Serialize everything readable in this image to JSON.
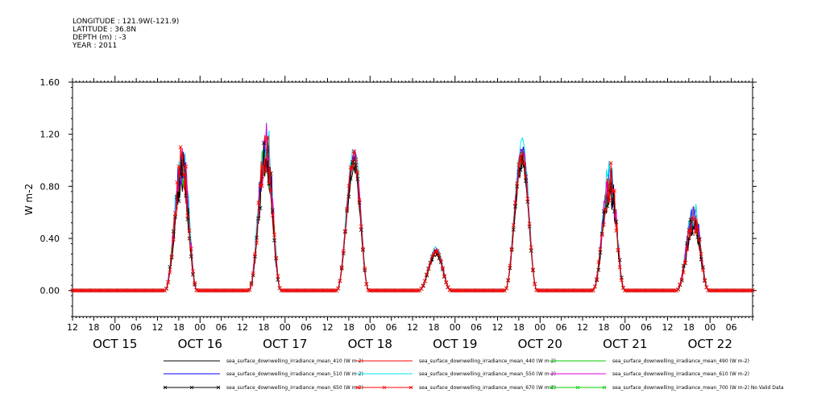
{
  "header": {
    "lines": [
      "LONGITUDE : 121.9W(-121.9)",
      "LATITUDE : 36.8N",
      "DEPTH (m) : -3",
      "YEAR : 2011"
    ]
  },
  "chart_data": {
    "type": "line",
    "ylabel": "W m-2",
    "ylim": [
      -0.2,
      1.6
    ],
    "y_ticks": [
      "1.60",
      "1.20",
      "0.80",
      "0.40",
      "0.00"
    ],
    "y_tick_values": [
      1.6,
      1.2,
      0.8,
      0.4,
      0.0
    ],
    "x_start": "2011-10-14T12:00",
    "x_end": "2011-10-22T12:00",
    "hour_ticks_labels": [
      "12",
      "18",
      "00",
      "06",
      "12",
      "18",
      "00",
      "06",
      "12",
      "18",
      "00",
      "06",
      "12",
      "18",
      "00",
      "06",
      "12",
      "18",
      "00",
      "06",
      "12",
      "18",
      "00",
      "06",
      "12",
      "18",
      "00",
      "06",
      "12",
      "18",
      "00",
      "06"
    ],
    "day_labels": [
      "OCT 15",
      "OCT 16",
      "OCT 17",
      "OCT 18",
      "OCT 19",
      "OCT 20",
      "OCT 21",
      "OCT 22"
    ],
    "days": [
      {
        "date": "2011-10-15",
        "peak_hour": 19.0,
        "peak": 0.98,
        "shape": "spiky"
      },
      {
        "date": "2011-10-16",
        "peak_hour": 18.7,
        "peak": 1.1,
        "shape": "spiky"
      },
      {
        "date": "2011-10-17",
        "peak_hour": 19.5,
        "peak": 1.02,
        "shape": "smooth"
      },
      {
        "date": "2011-10-18",
        "peak_hour": 18.7,
        "peak": 0.3,
        "shape": "smooth"
      },
      {
        "date": "2011-10-19",
        "peak_hour": 19.0,
        "peak": 1.05,
        "shape": "smooth"
      },
      {
        "date": "2011-10-20",
        "peak_hour": 19.8,
        "peak": 0.85,
        "shape": "spiky"
      },
      {
        "date": "2011-10-21",
        "peak_hour": 19.5,
        "peak": 0.55,
        "shape": "spiky"
      }
    ],
    "series": [
      {
        "name": "sea_surface_downwelling_irradiance_mean_410 (W m-2)",
        "color": "#000000",
        "scale": 0.92,
        "marker": "none"
      },
      {
        "name": "sea_surface_downwelling_irradiance_mean_440 (W m-2)",
        "color": "#ff0000",
        "scale": 0.97,
        "marker": "none"
      },
      {
        "name": "sea_surface_downwelling_irradiance_mean_490 (W m-2)",
        "color": "#00cc00",
        "scale": 1.0,
        "marker": "none"
      },
      {
        "name": "sea_surface_downwelling_irradiance_mean_510 (W m-2)",
        "color": "#0000ff",
        "scale": 1.03,
        "marker": "none"
      },
      {
        "name": "sea_surface_downwelling_irradiance_mean_550 (W m-2)",
        "color": "#00e5ee",
        "scale": 1.08,
        "marker": "none"
      },
      {
        "name": "sea_surface_downwelling_irradiance_mean_610 (W m-2)",
        "color": "#e000e0",
        "scale": 1.02,
        "marker": "none"
      },
      {
        "name": "sea_surface_downwelling_irradiance_mean_650 (W m-2)",
        "color": "#000000",
        "scale": 0.95,
        "marker": "x"
      },
      {
        "name": "sea_surface_downwelling_irradiance_mean_670 (W m-2)",
        "color": "#ff0000",
        "scale": 1.0,
        "marker": "x"
      },
      {
        "name": "sea_surface_downwelling_irradiance_mean_700 (W m-2) No Valid Data",
        "color": "#00cc00",
        "scale": 0,
        "marker": "x"
      }
    ]
  }
}
